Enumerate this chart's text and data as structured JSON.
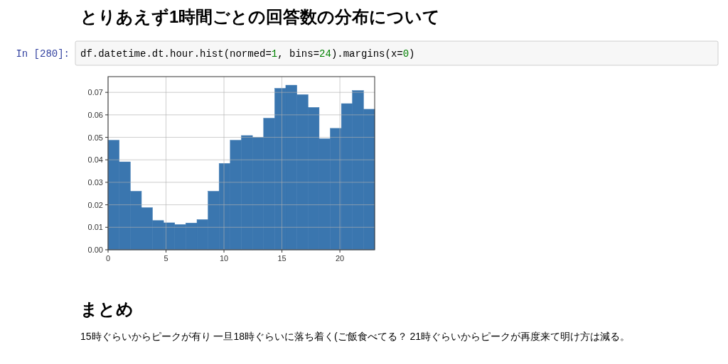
{
  "chart_data": {
    "type": "histogram",
    "title": "とりあえず1時間ごとの回答数の分布について",
    "annotations": [
      "In [280]:",
      "df.datetime.dt.hour.hist(normed=1, bins=24).margins(x=0)",
      "まとめ",
      "15時ぐらいからピークが有り 一旦18時ぐらいに落ち着く(ご飯食べてる？ 21時ぐらいからピークが再度来て明け方は減る。"
    ],
    "bins": [
      0,
      0.96,
      1.92,
      2.88,
      3.83,
      4.79,
      5.75,
      6.71,
      7.67,
      8.63,
      9.58,
      10.54,
      11.5,
      12.46,
      13.42,
      14.38,
      15.33,
      16.29,
      17.25,
      18.21,
      19.17,
      20.13,
      21.08,
      22.04,
      23
    ],
    "values": [
      0.0487,
      0.0391,
      0.026,
      0.0187,
      0.013,
      0.012,
      0.0112,
      0.0119,
      0.0134,
      0.026,
      0.0384,
      0.0487,
      0.0508,
      0.05,
      0.0585,
      0.0718,
      0.0732,
      0.069,
      0.0633,
      0.0494,
      0.054,
      0.065,
      0.0708,
      0.0625
    ],
    "color": "#3a76af",
    "xlim": [
      0,
      23
    ],
    "ylim": [
      0,
      0.077
    ],
    "xticks": [
      0,
      5,
      10,
      15,
      20
    ],
    "yticks": [
      {
        "value": 0,
        "label": "0.00"
      },
      {
        "value": 0.01,
        "label": "0.01"
      },
      {
        "value": 0.02,
        "label": "0.02"
      },
      {
        "value": 0.03,
        "label": "0.03"
      },
      {
        "value": 0.04,
        "label": "0.04"
      },
      {
        "value": 0.05,
        "label": "0.05"
      },
      {
        "value": 0.06,
        "label": "0.06"
      },
      {
        "value": 0.07,
        "label": "0.07"
      }
    ],
    "grid": true
  }
}
